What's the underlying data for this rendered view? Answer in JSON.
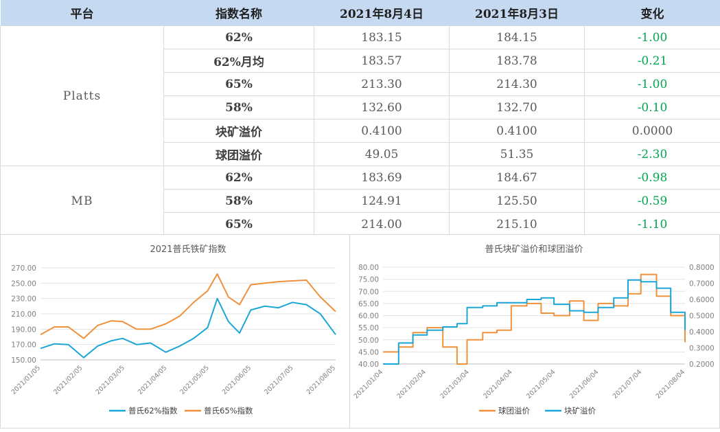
{
  "table": {
    "headers": [
      "平台",
      "指数名称",
      "2021年8月4日",
      "2021年8月3日",
      "变化"
    ],
    "groups": [
      {
        "platform": "Platts",
        "rows": [
          {
            "name": "62%",
            "d1": "183.15",
            "d2": "184.15",
            "chg": "-1.00"
          },
          {
            "name": "62%月均",
            "d1": "183.57",
            "d2": "183.78",
            "chg": "-0.21"
          },
          {
            "name": "65%",
            "d1": "213.30",
            "d2": "214.30",
            "chg": "-1.00"
          },
          {
            "name": "58%",
            "d1": "132.60",
            "d2": "132.70",
            "chg": "-0.10"
          },
          {
            "name": "块矿溢价",
            "d1": "0.4100",
            "d2": "0.4100",
            "chg": "0.0000"
          },
          {
            "name": "球团溢价",
            "d1": "49.05",
            "d2": "51.35",
            "chg": "-2.30"
          }
        ]
      },
      {
        "platform": "MB",
        "rows": [
          {
            "name": "62%",
            "d1": "183.69",
            "d2": "184.67",
            "chg": "-0.98"
          },
          {
            "name": "58%",
            "d1": "124.91",
            "d2": "125.50",
            "chg": "-0.59"
          },
          {
            "name": "65%",
            "d1": "214.00",
            "d2": "215.10",
            "chg": "-1.10"
          }
        ]
      }
    ]
  },
  "colors": {
    "blue": "#1aa7d8",
    "orange": "#f0913a",
    "grid": "#e3e3e3",
    "axis_text": "#7f7f7f"
  },
  "chart_data": [
    {
      "type": "line",
      "title": "2021普氏铁矿指数",
      "ylim": [
        150,
        270
      ],
      "yticks": [
        "150.00",
        "170.00",
        "190.00",
        "210.00",
        "230.00",
        "250.00",
        "270.00"
      ],
      "x_tick_labels": [
        "2021/01/05",
        "2021/02/05",
        "2021/03/05",
        "2021/04/05",
        "2021/05/05",
        "2021/06/05",
        "2021/07/05",
        "2021/08/05"
      ],
      "legend_position": "bottom",
      "x": [
        "2021-01-05",
        "2021-01-15",
        "2021-01-25",
        "2021-02-05",
        "2021-02-15",
        "2021-02-25",
        "2021-03-05",
        "2021-03-15",
        "2021-03-25",
        "2021-04-05",
        "2021-04-15",
        "2021-04-25",
        "2021-05-05",
        "2021-05-12",
        "2021-05-20",
        "2021-05-28",
        "2021-06-05",
        "2021-06-15",
        "2021-06-25",
        "2021-07-05",
        "2021-07-15",
        "2021-07-25",
        "2021-08-05"
      ],
      "series": [
        {
          "name": "普氏62%指数",
          "color": "blue",
          "values": [
            165,
            171,
            170,
            153,
            168,
            175,
            178,
            170,
            172,
            160,
            168,
            178,
            192,
            230,
            200,
            185,
            215,
            220,
            218,
            225,
            222,
            210,
            183
          ]
        },
        {
          "name": "普氏65%指数",
          "color": "orange",
          "values": [
            183,
            193,
            193,
            178,
            195,
            201,
            200,
            190,
            190,
            197,
            207,
            225,
            240,
            262,
            232,
            222,
            248,
            250,
            252,
            253,
            254,
            232,
            213
          ]
        }
      ]
    },
    {
      "type": "line",
      "title": "普氏块矿溢价和球团溢价",
      "ylim_left": [
        40,
        80
      ],
      "ylim_right": [
        0.2,
        0.8
      ],
      "yticks_left": [
        "40.00",
        "45.00",
        "50.00",
        "55.00",
        "60.00",
        "65.00",
        "70.00",
        "75.00",
        "80.00"
      ],
      "yticks_right": [
        "0.2000",
        "0.3000",
        "0.4000",
        "0.5000",
        "0.6000",
        "0.7000",
        "0.8000"
      ],
      "x_tick_labels": [
        "2021/01/04",
        "2021/02/04",
        "2021/03/04",
        "2021/04/04",
        "2021/05/04",
        "2021/06/04",
        "2021/07/04",
        "2021/08/04"
      ],
      "legend_position": "bottom",
      "x": [
        "2021-01-04",
        "2021-01-15",
        "2021-01-25",
        "2021-02-04",
        "2021-02-15",
        "2021-02-25",
        "2021-03-04",
        "2021-03-15",
        "2021-03-25",
        "2021-04-04",
        "2021-04-15",
        "2021-04-25",
        "2021-05-04",
        "2021-05-15",
        "2021-05-25",
        "2021-06-04",
        "2021-06-15",
        "2021-06-25",
        "2021-07-04",
        "2021-07-15",
        "2021-07-25",
        "2021-08-04"
      ],
      "series": [
        {
          "name": "球团溢价",
          "color": "orange",
          "axis": "left",
          "values": [
            45,
            47,
            53,
            55,
            47,
            40,
            50,
            53,
            54,
            64,
            65,
            61,
            60,
            66,
            58,
            65,
            64,
            69,
            77,
            68,
            60,
            49
          ]
        },
        {
          "name": "块矿溢价",
          "color": "blue",
          "axis": "right",
          "values": [
            0.2,
            0.33,
            0.38,
            0.41,
            0.43,
            0.45,
            0.55,
            0.56,
            0.58,
            0.58,
            0.6,
            0.61,
            0.57,
            0.53,
            0.52,
            0.55,
            0.61,
            0.72,
            0.71,
            0.67,
            0.52,
            0.41
          ]
        }
      ]
    }
  ]
}
